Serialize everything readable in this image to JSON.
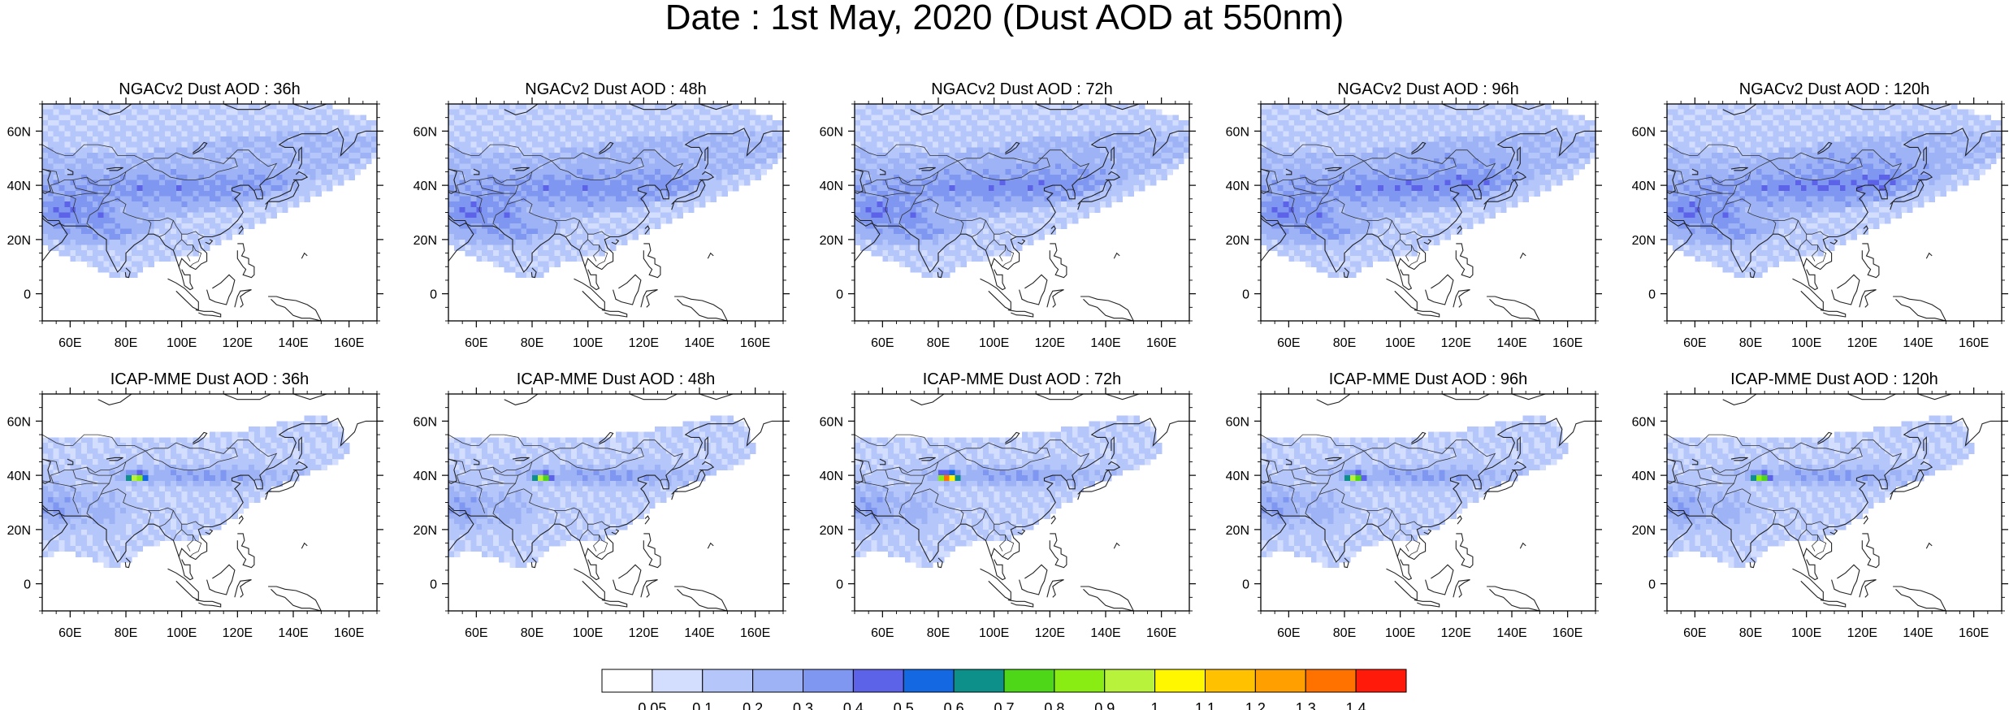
{
  "figure": {
    "title": "Date : 1st May, 2020 (Dust AOD at 550nm)"
  },
  "axes": {
    "lon_ticks": [
      "60E",
      "80E",
      "100E",
      "120E",
      "140E",
      "160E"
    ],
    "lat_ticks": [
      "60N",
      "40N",
      "20N",
      "0"
    ]
  },
  "panels": [
    {
      "title": "NGACv2 Dust AOD : 36h",
      "model": "NGACv2",
      "lead": "36h"
    },
    {
      "title": "NGACv2 Dust AOD : 48h",
      "model": "NGACv2",
      "lead": "48h"
    },
    {
      "title": "NGACv2 Dust AOD : 72h",
      "model": "NGACv2",
      "lead": "72h"
    },
    {
      "title": "NGACv2 Dust AOD : 96h",
      "model": "NGACv2",
      "lead": "96h"
    },
    {
      "title": "NGACv2 Dust AOD : 120h",
      "model": "NGACv2",
      "lead": "120h"
    },
    {
      "title": "ICAP-MME Dust AOD : 36h",
      "model": "ICAP-MME",
      "lead": "36h"
    },
    {
      "title": "ICAP-MME Dust AOD : 48h",
      "model": "ICAP-MME",
      "lead": "48h"
    },
    {
      "title": "ICAP-MME Dust AOD : 72h",
      "model": "ICAP-MME",
      "lead": "72h"
    },
    {
      "title": "ICAP-MME Dust AOD : 96h",
      "model": "ICAP-MME",
      "lead": "96h"
    },
    {
      "title": "ICAP-MME Dust AOD : 120h",
      "model": "ICAP-MME",
      "lead": "120h"
    }
  ],
  "colorbar": {
    "labels": [
      "0.05",
      "0.1",
      "0.2",
      "0.3",
      "0.4",
      "0.5",
      "0.6",
      "0.7",
      "0.8",
      "0.9",
      "1",
      "1.1",
      "1.2",
      "1.3",
      "1.4"
    ],
    "colors": [
      "#ffffff",
      "#d3deff",
      "#b5c6fb",
      "#9db3f6",
      "#7f97f1",
      "#5c63e8",
      "#1469e3",
      "#0d8f8a",
      "#4ed619",
      "#89ec12",
      "#b8f23a",
      "#fff700",
      "#ffc100",
      "#ffa000",
      "#ff7200",
      "#ff1a0a"
    ]
  }
}
